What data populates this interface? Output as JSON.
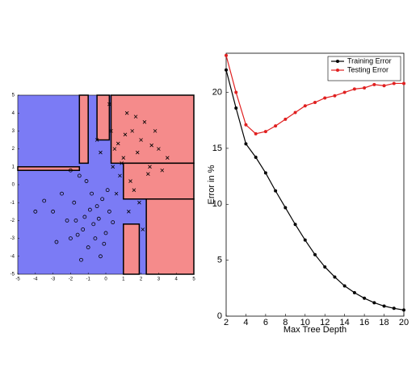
{
  "chart_data": [
    {
      "type": "scatter",
      "xlim": [
        -5,
        5
      ],
      "ylim": [
        -5,
        5
      ],
      "xticks": [
        -5,
        -4,
        -3,
        -2,
        -1,
        0,
        1,
        2,
        3,
        4,
        5
      ],
      "yticks": [
        -5,
        -4,
        -3,
        -2,
        -1,
        0,
        1,
        2,
        3,
        4,
        5
      ],
      "background_color": "#7b7bf5",
      "regions": [
        {
          "color": "#f58b8b",
          "x": [
            -1.5,
            -1.0
          ],
          "y": [
            1.2,
            5
          ]
        },
        {
          "color": "#f58b8b",
          "x": [
            0.3,
            5
          ],
          "y": [
            1.2,
            5
          ]
        },
        {
          "color": "#f58b8b",
          "x": [
            -5,
            -1.5
          ],
          "y": [
            0.8,
            1.0
          ]
        },
        {
          "color": "#f58b8b",
          "x": [
            1.0,
            5
          ],
          "y": [
            -0.8,
            1.2
          ]
        },
        {
          "color": "#f58b8b",
          "x": [
            2.3,
            5
          ],
          "y": [
            -5,
            -0.8
          ]
        },
        {
          "color": "#f58b8b",
          "x": [
            1.0,
            1.9
          ],
          "y": [
            -5,
            -2.2
          ]
        },
        {
          "color": "#f58b8b",
          "x": [
            -0.5,
            0.2
          ],
          "y": [
            2.5,
            5
          ]
        }
      ],
      "series": [
        {
          "marker": "o",
          "color": "#000000",
          "x": [
            -3,
            -2.5,
            -2.2,
            -2,
            -1.8,
            -1.5,
            -1.3,
            -1.2,
            -1,
            -0.8,
            -0.7,
            -0.5,
            -0.3,
            -0.2,
            0,
            0.2,
            -2.8,
            -1.6,
            -1.1,
            -0.6,
            -0.4,
            0.1,
            -3.5,
            -4,
            -2,
            -1.4,
            -0.9,
            -0.1,
            0.4,
            -1.7
          ],
          "y": [
            -1.5,
            -0.5,
            -2,
            -3,
            -1,
            0.5,
            -2.5,
            -1.8,
            -3.5,
            -0.5,
            -2.2,
            -1.2,
            -4,
            -0.8,
            -2.7,
            -1.5,
            -3.2,
            -2.8,
            0.2,
            -3,
            -1.9,
            -0.3,
            -0.9,
            -1.5,
            0.8,
            -4.2,
            -1.4,
            -3.3,
            -2.1,
            -2
          ]
        },
        {
          "marker": "x",
          "color": "#000000",
          "x": [
            0.5,
            1,
            1.5,
            2,
            2.5,
            3,
            0.8,
            1.2,
            1.8,
            2.2,
            0.3,
            0.6,
            1.4,
            2.8,
            3.5,
            1.1,
            1.6,
            0.9,
            2.4,
            0.2,
            -0.3,
            1.9,
            0.7,
            1.3,
            2.6,
            3.2,
            0.4,
            1.7,
            -0.5,
            2.1
          ],
          "y": [
            2,
            1.5,
            3,
            2.5,
            1,
            2,
            0.5,
            4,
            1.8,
            3.5,
            3,
            -0.5,
            0.2,
            3,
            1.5,
            2.8,
            -0.3,
            1.2,
            0.6,
            4.5,
            1.8,
            -1,
            2.3,
            -1.5,
            2.2,
            0.8,
            1,
            3.8,
            2.5,
            -2.5
          ]
        }
      ]
    },
    {
      "type": "line",
      "x_label": "Max Tree Depth",
      "y_label": "Error in %",
      "x": [
        2,
        3,
        4,
        5,
        6,
        7,
        8,
        9,
        10,
        11,
        12,
        13,
        14,
        15,
        16,
        17,
        18,
        19,
        20
      ],
      "xlim": [
        2,
        20
      ],
      "ylim": [
        0,
        23.5
      ],
      "xticks": [
        2,
        4,
        6,
        8,
        10,
        12,
        14,
        16,
        18,
        20
      ],
      "yticks": [
        0,
        5,
        10,
        15,
        20
      ],
      "legend": "northeast",
      "series": [
        {
          "name": "Training Error",
          "color": "#000000",
          "values": [
            22.0,
            18.6,
            15.4,
            14.2,
            12.8,
            11.2,
            9.7,
            8.2,
            6.8,
            5.5,
            4.4,
            3.5,
            2.7,
            2.1,
            1.6,
            1.2,
            0.9,
            0.7,
            0.55
          ]
        },
        {
          "name": "Testing Error",
          "color": "#e02020",
          "values": [
            23.3,
            20.0,
            17.1,
            16.3,
            16.5,
            17.0,
            17.6,
            18.2,
            18.8,
            19.1,
            19.5,
            19.7,
            20.0,
            20.3,
            20.4,
            20.7,
            20.6,
            20.8,
            20.8
          ]
        }
      ]
    }
  ]
}
